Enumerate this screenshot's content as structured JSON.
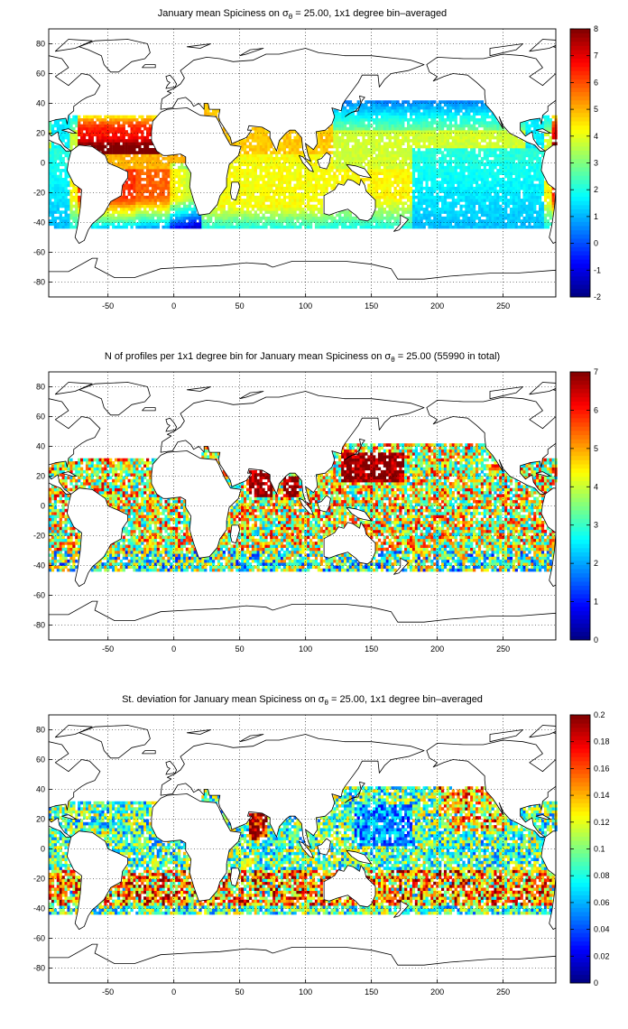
{
  "chart_data": [
    {
      "type": "heatmap",
      "title": "January mean Spiciness on σ",
      "title_sub": "θ",
      "title_rest": " = 25.00, 1x1 degree bin–averaged",
      "xlim": [
        -95,
        290
      ],
      "ylim": [
        -90,
        90
      ],
      "xticks": [
        -50,
        0,
        50,
        100,
        150,
        200,
        250
      ],
      "yticks": [
        -80,
        -60,
        -40,
        -20,
        0,
        20,
        40,
        60,
        80
      ],
      "colorbar": {
        "min": -2,
        "max": 8,
        "ticks": [
          -2,
          -1,
          0,
          1,
          2,
          3,
          4,
          5,
          6,
          7,
          8
        ],
        "colormap": "jet"
      },
      "field": "spiciness",
      "grid": true
    },
    {
      "type": "heatmap",
      "title": "N of profiles per 1x1 degree bin for January mean Spiciness on σ",
      "title_sub": "θ",
      "title_rest": " = 25.00 (55990 in total)",
      "xlim": [
        -95,
        290
      ],
      "ylim": [
        -90,
        90
      ],
      "xticks": [
        -50,
        0,
        50,
        100,
        150,
        200,
        250
      ],
      "yticks": [
        -80,
        -60,
        -40,
        -20,
        0,
        20,
        40,
        60,
        80
      ],
      "colorbar": {
        "min": 0,
        "max": 7,
        "ticks": [
          0,
          1,
          2,
          3,
          4,
          5,
          6,
          7
        ],
        "colormap": "jet"
      },
      "field": "count",
      "total_profiles": 55990,
      "grid": true
    },
    {
      "type": "heatmap",
      "title": "St. deviation for January mean Spiciness on σ",
      "title_sub": "θ",
      "title_rest": " = 25.00, 1x1 degree bin–averaged",
      "xlim": [
        -95,
        290
      ],
      "ylim": [
        -90,
        90
      ],
      "xticks": [
        -50,
        0,
        50,
        100,
        150,
        200,
        250
      ],
      "yticks": [
        -80,
        -60,
        -40,
        -20,
        0,
        20,
        40,
        60,
        80
      ],
      "colorbar": {
        "min": 0,
        "max": 0.2,
        "ticks": [
          0,
          0.02,
          0.04,
          0.06,
          0.08,
          0.1,
          0.12,
          0.14,
          0.16,
          0.18,
          0.2
        ],
        "colormap": "jet"
      },
      "field": "stdev",
      "grid": true
    }
  ],
  "colors": {
    "background": "#ffffff",
    "land": "#ffffff",
    "coast": "#000000"
  }
}
